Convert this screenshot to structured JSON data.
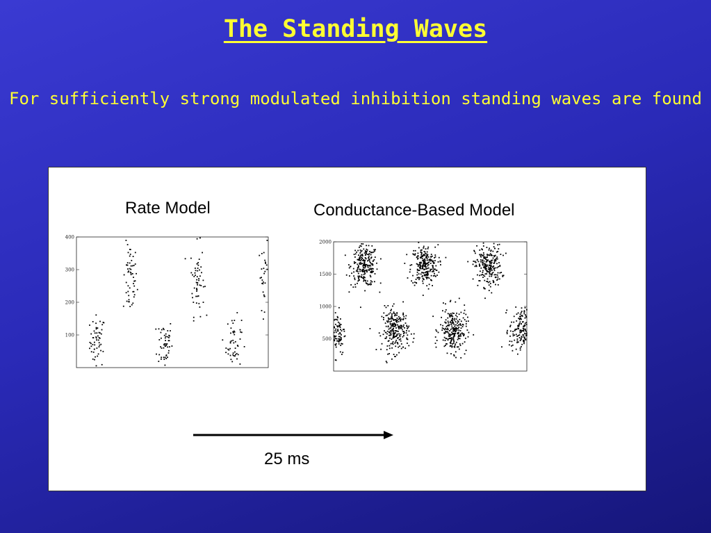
{
  "slide": {
    "title": "The Standing Waves",
    "subtitle": "For sufficiently strong modulated inhibition standing waves are found"
  },
  "figure": {
    "rate_label": "Rate Model",
    "cond_label": "Conductance-Based Model",
    "scale_label": "25 ms"
  },
  "chart_data": [
    {
      "type": "scatter",
      "title": "Rate Model",
      "y_ticks": [
        "100",
        "200",
        "300",
        "400"
      ],
      "ylim": [
        0,
        400
      ],
      "clusters": [
        {
          "x": 0.11,
          "y": 80,
          "sx": 0.02,
          "sy": 40,
          "n": 55
        },
        {
          "x": 0.28,
          "y": 270,
          "sx": 0.018,
          "sy": 55,
          "n": 55
        },
        {
          "x": 0.46,
          "y": 75,
          "sx": 0.02,
          "sy": 40,
          "n": 50
        },
        {
          "x": 0.63,
          "y": 270,
          "sx": 0.018,
          "sy": 55,
          "n": 55
        },
        {
          "x": 0.82,
          "y": 75,
          "sx": 0.02,
          "sy": 40,
          "n": 50
        },
        {
          "x": 0.98,
          "y": 280,
          "sx": 0.015,
          "sy": 50,
          "n": 30
        }
      ]
    },
    {
      "type": "scatter",
      "title": "Conductance-Based Model",
      "y_ticks": [
        "500",
        "1000",
        "1500",
        "2000"
      ],
      "ylim": [
        0,
        2000
      ],
      "clusters": [
        {
          "x": 0.16,
          "y": 1630,
          "sx": 0.035,
          "sy": 160,
          "n": 240
        },
        {
          "x": 0.47,
          "y": 1630,
          "sx": 0.035,
          "sy": 160,
          "n": 240
        },
        {
          "x": 0.8,
          "y": 1630,
          "sx": 0.035,
          "sy": 160,
          "n": 230
        },
        {
          "x": 0.32,
          "y": 630,
          "sx": 0.035,
          "sy": 170,
          "n": 240
        },
        {
          "x": 0.62,
          "y": 630,
          "sx": 0.035,
          "sy": 170,
          "n": 240
        },
        {
          "x": 0.97,
          "y": 630,
          "sx": 0.03,
          "sy": 170,
          "n": 170
        },
        {
          "x": 0.02,
          "y": 600,
          "sx": 0.02,
          "sy": 180,
          "n": 90
        }
      ]
    }
  ]
}
